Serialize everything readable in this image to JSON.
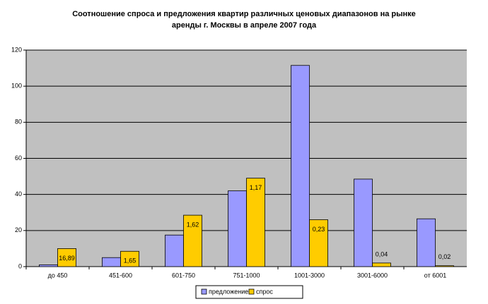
{
  "chart_data": {
    "type": "bar",
    "title": "Соотношение спроса и предложения квартир различных ценовых диапазонов на рынке аренды г. Москвы в апреле 2007 года",
    "categories": [
      "до 450",
      "451-600",
      "601-750",
      "751-1000",
      "1001-3000",
      "3001-6000",
      "от 6001"
    ],
    "series": [
      {
        "name": "предложение",
        "color": "#9999ff",
        "values": [
          1,
          5,
          17.5,
          42,
          111.5,
          48.5,
          26.5
        ]
      },
      {
        "name": "спрос",
        "color": "#ffcc00",
        "values": [
          10,
          8.5,
          28.5,
          49,
          26,
          2,
          0.5
        ]
      }
    ],
    "ratio_labels": [
      "16,89",
      "1,65",
      "1,62",
      "1,17",
      "0,23",
      "0,04",
      "0,02"
    ],
    "ylim": [
      0,
      120
    ],
    "yticks": [
      0,
      20,
      40,
      60,
      80,
      100,
      120
    ],
    "grid": true,
    "legend": "bottom"
  }
}
